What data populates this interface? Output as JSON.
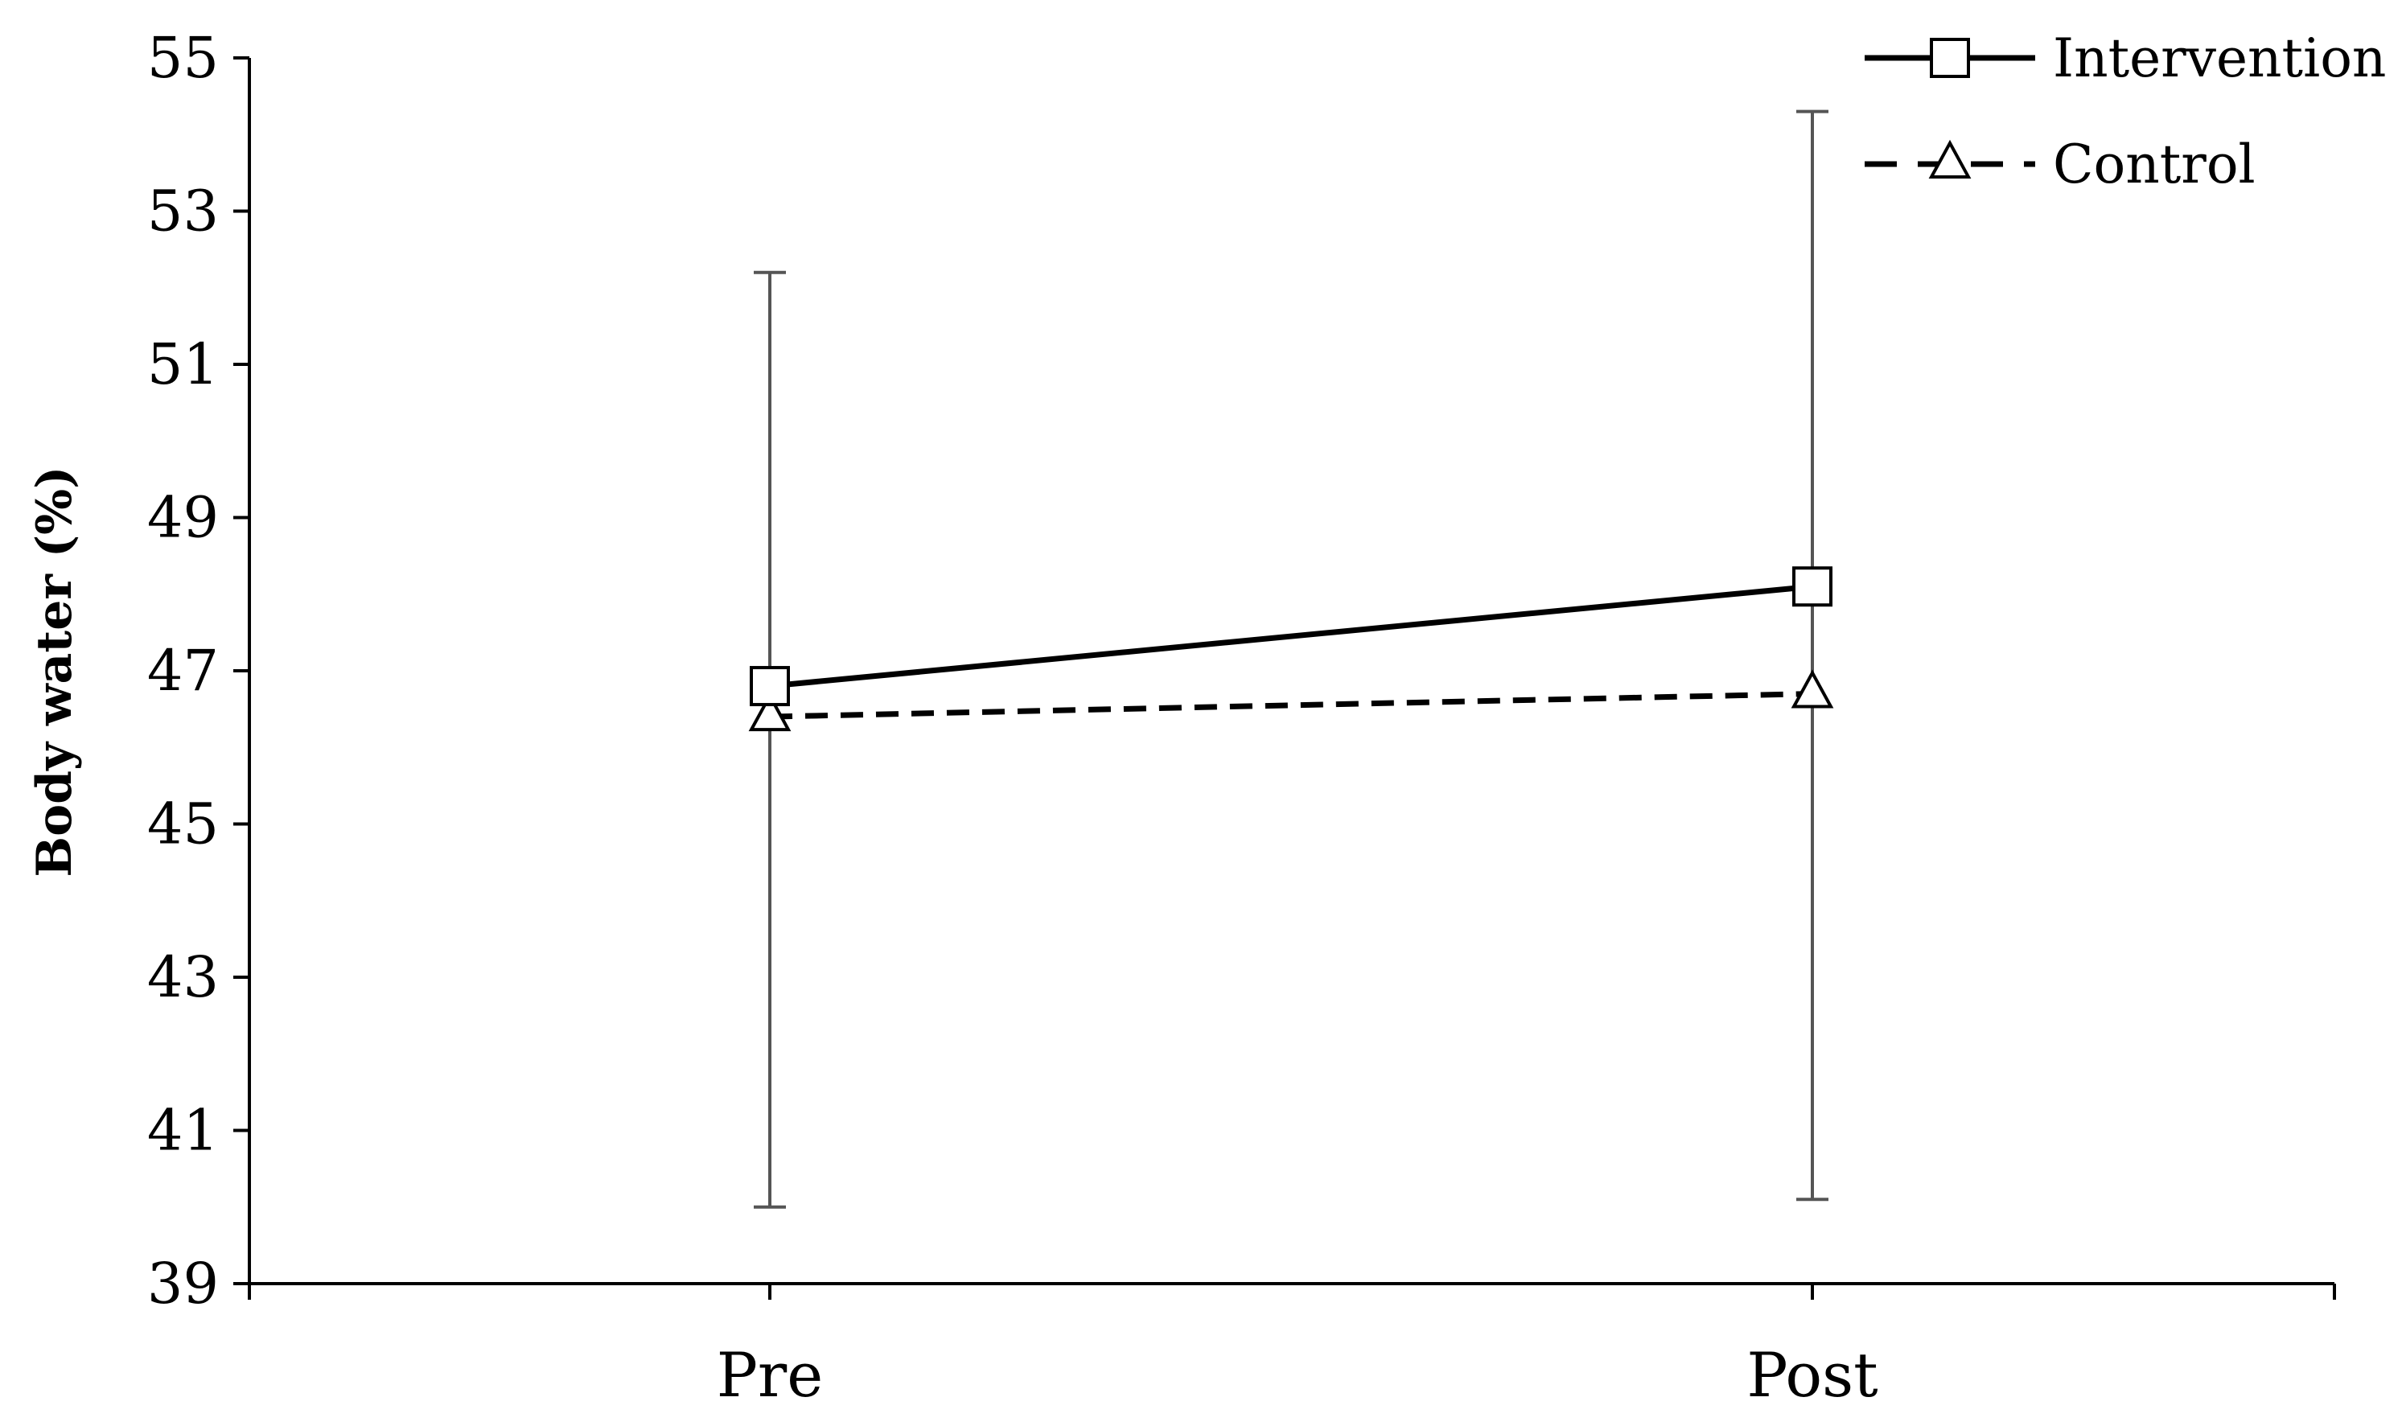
{
  "chart_data": {
    "type": "line",
    "title": "",
    "xlabel": "",
    "ylabel": "Body water (%)",
    "categories": [
      "Pre",
      "Post"
    ],
    "ylim": [
      39,
      55
    ],
    "yticks": [
      39,
      41,
      43,
      45,
      47,
      49,
      51,
      53,
      55
    ],
    "grid": false,
    "legend_position": "top-right",
    "series": [
      {
        "name": "Intervention",
        "values": [
          46.8,
          48.1
        ],
        "line_style": "solid",
        "marker": "square",
        "color": "#000000"
      },
      {
        "name": "Control",
        "values": [
          46.4,
          46.7
        ],
        "line_style": "dashed",
        "marker": "triangle",
        "color": "#000000"
      }
    ],
    "error_bars": [
      {
        "category": "Pre",
        "low": 40.0,
        "high": 52.2
      },
      {
        "category": "Post",
        "low": 40.1,
        "high": 54.3
      }
    ],
    "error_bar_color": "#555555"
  }
}
